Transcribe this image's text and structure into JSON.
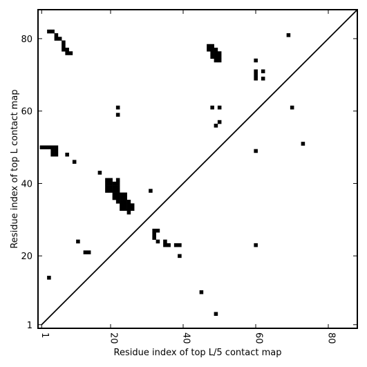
{
  "chart_data": {
    "type": "scatter",
    "title": "",
    "xlabel": "Residue index of top L/5 contact map",
    "ylabel": "Residue index of top L contact map",
    "xlim": [
      0,
      88
    ],
    "ylim": [
      0,
      88
    ],
    "x_ticks": [
      1,
      20,
      40,
      60,
      80
    ],
    "y_ticks": [
      1,
      20,
      40,
      60,
      80
    ],
    "grid": false,
    "diagonal": {
      "from": [
        1,
        1
      ],
      "to": [
        88,
        88
      ]
    },
    "marker": "square",
    "color": "#000000",
    "points": [
      [
        3,
        82
      ],
      [
        4,
        82
      ],
      [
        5,
        81
      ],
      [
        5,
        80
      ],
      [
        6,
        80
      ],
      [
        7,
        79
      ],
      [
        7,
        78
      ],
      [
        7,
        77
      ],
      [
        8,
        77
      ],
      [
        8,
        76
      ],
      [
        9,
        76
      ],
      [
        3,
        14
      ],
      [
        8,
        48
      ],
      [
        10,
        46
      ],
      [
        11,
        24
      ],
      [
        13,
        21
      ],
      [
        14,
        21
      ],
      [
        17,
        43
      ],
      [
        1,
        50
      ],
      [
        2,
        50
      ],
      [
        3,
        50
      ],
      [
        4,
        50
      ],
      [
        5,
        50
      ],
      [
        4,
        49
      ],
      [
        5,
        49
      ],
      [
        4,
        48
      ],
      [
        5,
        48
      ],
      [
        19,
        41
      ],
      [
        20,
        41
      ],
      [
        22,
        41
      ],
      [
        19,
        40
      ],
      [
        20,
        40
      ],
      [
        21,
        40
      ],
      [
        22,
        40
      ],
      [
        19,
        39
      ],
      [
        20,
        39
      ],
      [
        21,
        39
      ],
      [
        22,
        39
      ],
      [
        19,
        38
      ],
      [
        20,
        38
      ],
      [
        21,
        38
      ],
      [
        22,
        38
      ],
      [
        21,
        37
      ],
      [
        22,
        37
      ],
      [
        23,
        37
      ],
      [
        24,
        37
      ],
      [
        21,
        36
      ],
      [
        22,
        36
      ],
      [
        23,
        36
      ],
      [
        24,
        36
      ],
      [
        22,
        35
      ],
      [
        23,
        35
      ],
      [
        24,
        35
      ],
      [
        25,
        35
      ],
      [
        23,
        34
      ],
      [
        24,
        34
      ],
      [
        25,
        34
      ],
      [
        26,
        34
      ],
      [
        23,
        33
      ],
      [
        24,
        33
      ],
      [
        25,
        33
      ],
      [
        26,
        33
      ],
      [
        25,
        32
      ],
      [
        22,
        61
      ],
      [
        22,
        59
      ],
      [
        31,
        38
      ],
      [
        32,
        27
      ],
      [
        33,
        27
      ],
      [
        32,
        26
      ],
      [
        32,
        25
      ],
      [
        33,
        24
      ],
      [
        35,
        24
      ],
      [
        35,
        23
      ],
      [
        36,
        23
      ],
      [
        38,
        23
      ],
      [
        39,
        23
      ],
      [
        39,
        20
      ],
      [
        45,
        10
      ],
      [
        49,
        4
      ],
      [
        47,
        78
      ],
      [
        48,
        78
      ],
      [
        47,
        77
      ],
      [
        48,
        77
      ],
      [
        49,
        77
      ],
      [
        48,
        76
      ],
      [
        49,
        76
      ],
      [
        50,
        76
      ],
      [
        48,
        75
      ],
      [
        49,
        75
      ],
      [
        50,
        75
      ],
      [
        49,
        74
      ],
      [
        50,
        74
      ],
      [
        48,
        61
      ],
      [
        50,
        61
      ],
      [
        49,
        56
      ],
      [
        50,
        57
      ],
      [
        60,
        74
      ],
      [
        60,
        71
      ],
      [
        60,
        70
      ],
      [
        60,
        69
      ],
      [
        62,
        71
      ],
      [
        62,
        69
      ],
      [
        60,
        49
      ],
      [
        60,
        23
      ],
      [
        69,
        81
      ],
      [
        70,
        61
      ],
      [
        73,
        51
      ]
    ]
  }
}
